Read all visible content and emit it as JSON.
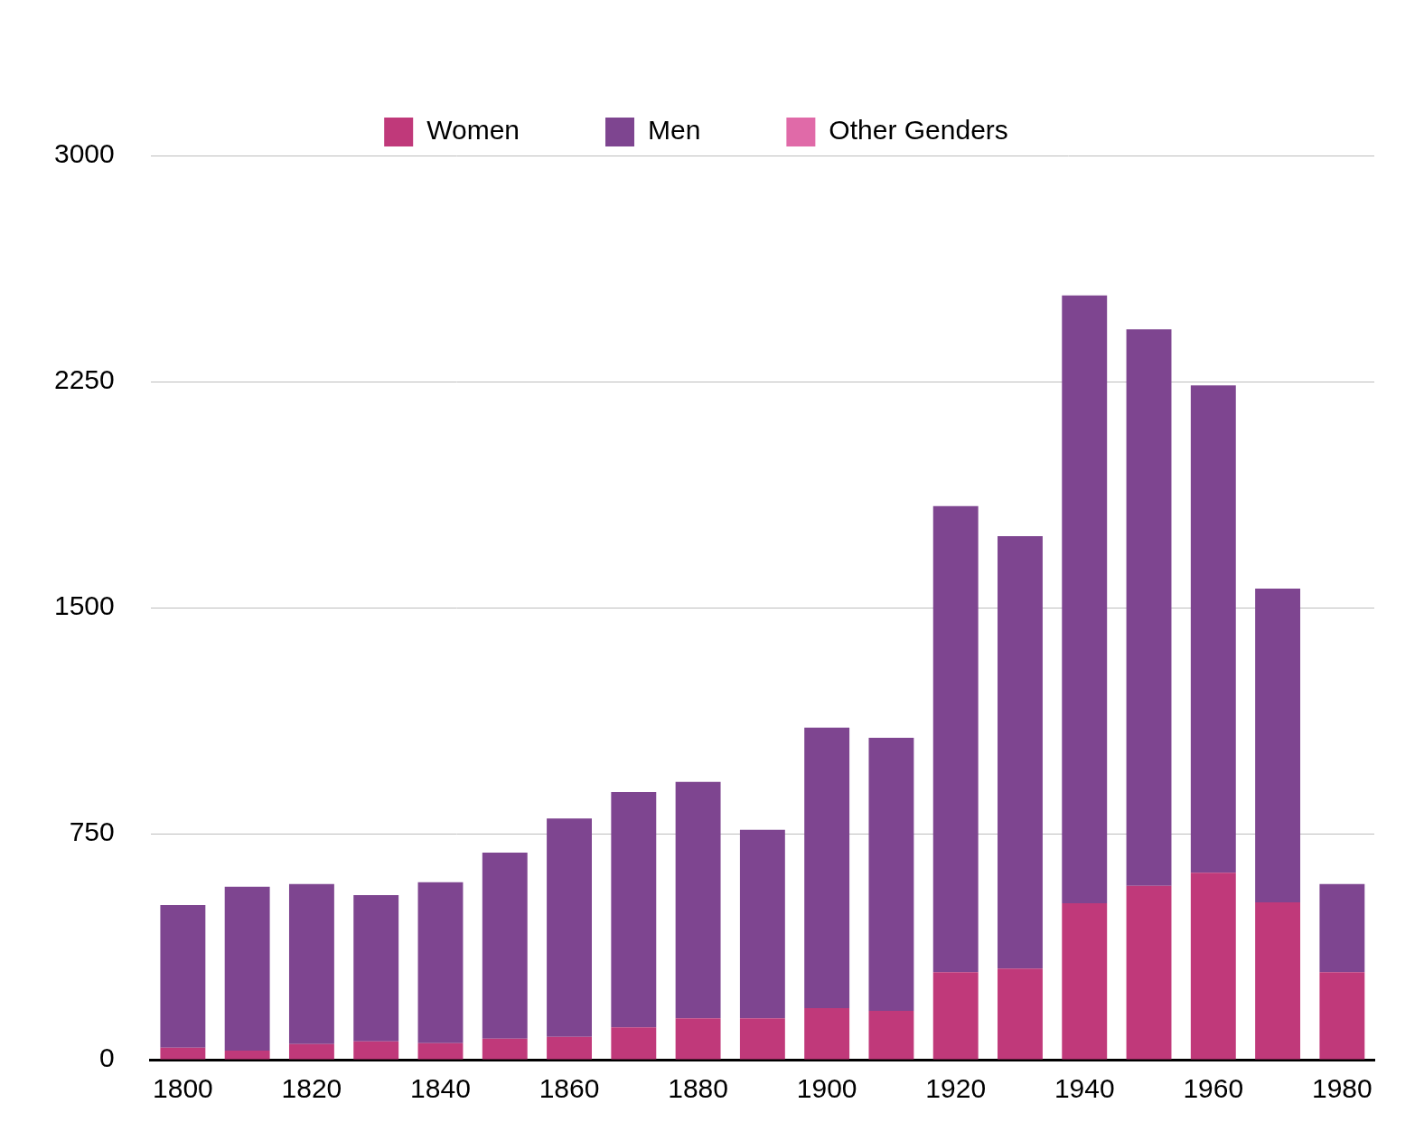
{
  "chart_data": {
    "type": "bar",
    "stacked": true,
    "categories": [
      "1800",
      null,
      "1820",
      null,
      "1840",
      null,
      "1860",
      null,
      "1880",
      null,
      "1900",
      null,
      "1920",
      null,
      "1940",
      null,
      "1960",
      null,
      "1980"
    ],
    "series": [
      {
        "name": "Women",
        "color": "#c0397a",
        "values": [
          40,
          30,
          52,
          61,
          55,
          70,
          76,
          107,
          137,
          137,
          171,
          162,
          290,
          302,
          519,
          577,
          620,
          522,
          290
        ]
      },
      {
        "name": "Men",
        "color": "#7e4590",
        "values": [
          473,
          544,
          531,
          485,
          534,
          617,
          724,
          781,
          785,
          626,
          931,
          906,
          1547,
          1435,
          2017,
          1846,
          1617,
          1041,
          293
        ]
      },
      {
        "name": "Other Genders",
        "color": "#e06aa8",
        "values": [
          0,
          0,
          0,
          0,
          0,
          0,
          0,
          0,
          0,
          0,
          0,
          0,
          0,
          0,
          0,
          0,
          0,
          0,
          0
        ]
      }
    ],
    "ylim": [
      0,
      3000
    ],
    "yticks": [
      0,
      750,
      1500,
      2250,
      3000
    ],
    "grid": true,
    "legend": "top"
  }
}
